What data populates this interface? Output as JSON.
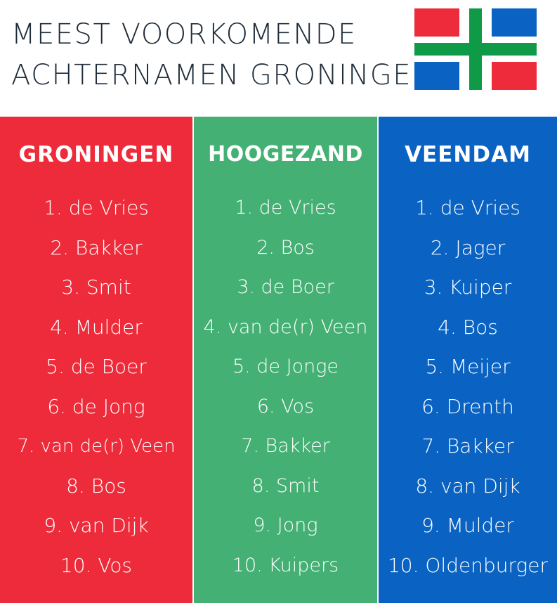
{
  "title": {
    "line1": "MEEST VOORKOMENDE",
    "line2": "ACHTERNAMEN GRONINGEN"
  },
  "flag": {
    "icon": "groningen-flag-icon",
    "colors": {
      "red": "#ee2b3a",
      "blue": "#0a63c2",
      "green": "#0f9a47",
      "white": "#ffffff"
    }
  },
  "columns": [
    {
      "header": "GRONINGEN",
      "color": "#ee2b3a",
      "names": [
        "1. de Vries",
        "2. Bakker",
        "3. Smit",
        "4. Mulder",
        "5. de Boer",
        "6. de Jong",
        "7. van de(r) Veen",
        "8. Bos",
        "9. van Dijk",
        "10. Vos"
      ]
    },
    {
      "header": "HOOGEZAND",
      "color": "#44b074",
      "names": [
        "1. de Vries",
        "2. Bos",
        "3. de Boer",
        "4. van de(r) Veen",
        "5. de Jonge",
        "6. Vos",
        "7. Bakker",
        "8. Smit",
        "9. Jong",
        "10. Kuipers"
      ]
    },
    {
      "header": "VEENDAM",
      "color": "#0a63c2",
      "names": [
        "1. de Vries",
        "2. Jager",
        "3. Kuiper",
        "4. Bos",
        "5. Meijer",
        "6. Drenth",
        "7. Bakker",
        "8. van Dijk",
        "9. Mulder",
        "10. Oldenburger"
      ]
    }
  ]
}
